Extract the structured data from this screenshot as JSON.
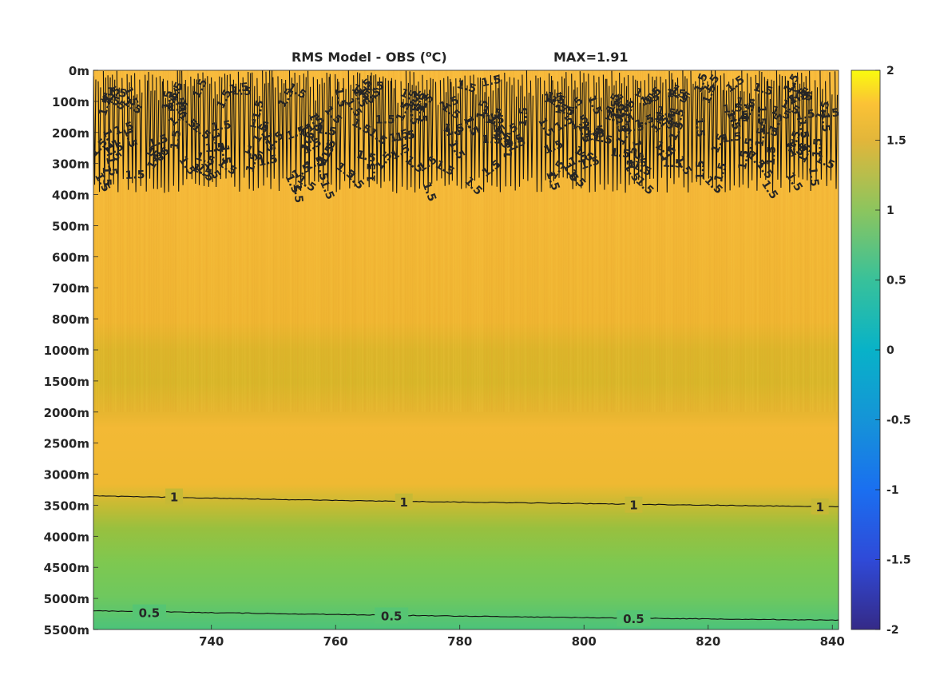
{
  "title": {
    "main": "RMS Model - OBS (",
    "unit": "C)",
    "superscript": "o",
    "max_label": "MAX=1.91"
  },
  "chart_data": {
    "type": "heatmap",
    "title": "RMS Model - OBS (°C)",
    "max_value_label": "MAX=1.91",
    "x_range": [
      721,
      841
    ],
    "x_ticks": [
      740,
      760,
      780,
      800,
      820,
      840
    ],
    "y_tick_labels": [
      "0m",
      "100m",
      "200m",
      "300m",
      "400m",
      "500m",
      "600m",
      "700m",
      "800m",
      "1000m",
      "1500m",
      "2000m",
      "2500m",
      "3000m",
      "3500m",
      "4000m",
      "4500m",
      "5000m",
      "5500m"
    ],
    "y_scale": "piecewise depth levels",
    "color_range": [
      -2,
      2
    ],
    "colormap": "parula",
    "colorbar_ticks": [
      2,
      1.5,
      1,
      0.5,
      0,
      -0.5,
      -1,
      -1.5,
      -2
    ],
    "field_profile": [
      {
        "depth_level": 0,
        "value": 1.6
      },
      {
        "depth_level": 3,
        "value": 1.5
      },
      {
        "depth_level": 5,
        "value": 1.4
      },
      {
        "depth_level": 8,
        "value": 1.35
      },
      {
        "depth_level": 9,
        "value": 1.25
      },
      {
        "depth_level": 10,
        "value": 1.2
      },
      {
        "depth_level": 11,
        "value": 1.38
      },
      {
        "depth_level": 12,
        "value": 1.36
      },
      {
        "depth_level": 13,
        "value": 1.15
      },
      {
        "depth_level": 14,
        "value": 1.0
      },
      {
        "depth_level": 15,
        "value": 0.82
      },
      {
        "depth_level": 16,
        "value": 0.76
      },
      {
        "depth_level": 17,
        "value": 0.66
      },
      {
        "depth_level": 18,
        "value": 0.5
      }
    ],
    "contours": [
      {
        "level": 1.5,
        "label": "1.5",
        "region": "0m-400m (dense, noisy)"
      },
      {
        "level": 1,
        "label": "1",
        "depth_levels": [
          [
            721,
            13.7
          ],
          [
            761,
            13.85
          ],
          [
            801,
            13.95
          ],
          [
            841,
            14.05
          ]
        ]
      },
      {
        "level": 0.5,
        "label": "0.5",
        "depth_levels": [
          [
            721,
            17.4
          ],
          [
            761,
            17.52
          ],
          [
            801,
            17.62
          ],
          [
            841,
            17.7
          ]
        ]
      }
    ],
    "contour_labels": [
      {
        "text": "1",
        "x": 734,
        "depth_level": 13.72
      },
      {
        "text": "1",
        "x": 771,
        "depth_level": 13.88
      },
      {
        "text": "1",
        "x": 808,
        "depth_level": 13.98
      },
      {
        "text": "1",
        "x": 838,
        "depth_level": 14.04
      },
      {
        "text": "0.5",
        "x": 730,
        "depth_level": 17.45
      },
      {
        "text": "0.5",
        "x": 769,
        "depth_level": 17.55
      },
      {
        "text": "0.5",
        "x": 808,
        "depth_level": 17.64
      }
    ],
    "grid": false
  }
}
